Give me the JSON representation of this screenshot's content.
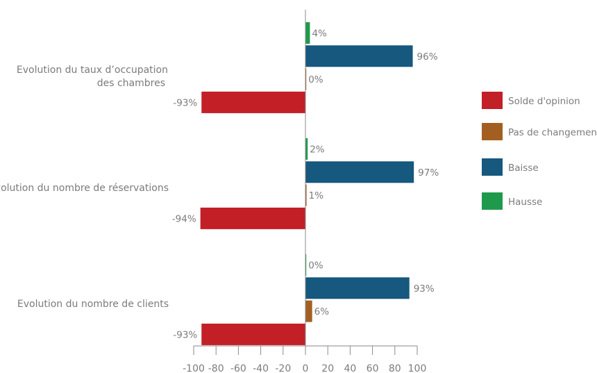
{
  "chart_data": {
    "type": "bar",
    "orientation": "horizontal",
    "categories": [
      "Evolution du taux d’occupation\ndes chambres",
      "Evolution du nombre de réservations",
      "Evolution du nombre de clients"
    ],
    "series": [
      {
        "name": "Hausse",
        "values": [
          4,
          2,
          0
        ],
        "color": "#1f9a4d",
        "labels": [
          "4%",
          "2%",
          "0%"
        ]
      },
      {
        "name": "Baisse",
        "values": [
          96,
          97,
          93
        ],
        "color": "#16587e",
        "labels": [
          "96%",
          "97%",
          "93%"
        ]
      },
      {
        "name": "Pas de changement",
        "values": [
          0,
          1,
          6
        ],
        "color": "#a35f22",
        "labels": [
          "0%",
          "1%",
          "6%"
        ]
      },
      {
        "name": "Solde d'opinion",
        "values": [
          -93,
          -94,
          -93
        ],
        "color": "#c21f27",
        "labels": [
          "-93%",
          "-94%",
          "-93%"
        ]
      }
    ],
    "legend_order": [
      "Solde d'opinion",
      "Pas de changement",
      "Baisse",
      "Hausse"
    ],
    "legend_position": "right",
    "xlim": [
      -100,
      100
    ],
    "xticks": [
      "-100",
      "-80",
      "-60",
      "-40",
      "-20",
      "0",
      "20",
      "40",
      "60",
      "80",
      "100"
    ],
    "grid": false
  }
}
